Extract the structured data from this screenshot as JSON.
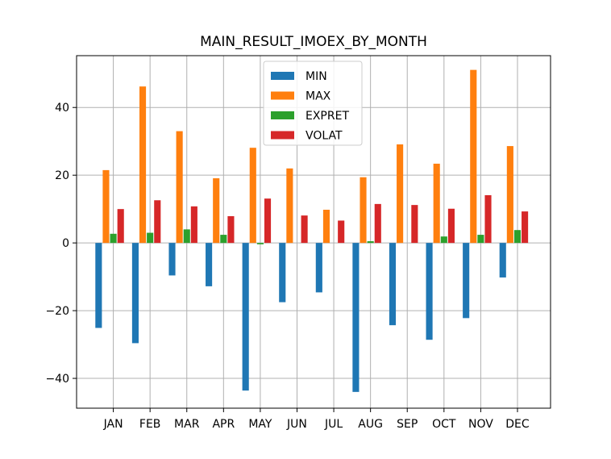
{
  "chart_data": {
    "type": "bar",
    "title": "MAIN_RESULT_IMOEX_BY_MONTH",
    "xlabel": "",
    "ylabel": "",
    "categories": [
      "JAN",
      "FEB",
      "MAR",
      "APR",
      "MAY",
      "JUN",
      "JUL",
      "AUG",
      "SEP",
      "OCT",
      "NOV",
      "DEC"
    ],
    "ylim": [
      -48.8,
      55.3
    ],
    "yticks": [
      -40,
      -20,
      0,
      20,
      40
    ],
    "grid": true,
    "legend_position": "upper-center",
    "series": [
      {
        "name": "MIN",
        "color": "#1f77b4",
        "values": [
          -25.1,
          -29.6,
          -9.6,
          -12.8,
          -43.6,
          -17.5,
          -14.6,
          -44.0,
          -24.3,
          -28.6,
          -22.2,
          -10.2
        ]
      },
      {
        "name": "MAX",
        "color": "#ff7f0e",
        "values": [
          21.5,
          46.2,
          33.0,
          19.1,
          28.1,
          22.0,
          9.8,
          19.4,
          29.1,
          23.4,
          51.1,
          28.6
        ]
      },
      {
        "name": "EXPRET",
        "color": "#2ca02c",
        "values": [
          2.7,
          3.0,
          4.0,
          2.4,
          -0.4,
          0.0,
          0.0,
          0.5,
          0.0,
          1.9,
          2.4,
          3.8
        ]
      },
      {
        "name": "VOLAT",
        "color": "#d62728",
        "values": [
          10.0,
          12.6,
          10.8,
          7.9,
          13.1,
          8.1,
          6.6,
          11.5,
          11.2,
          10.1,
          14.1,
          9.3
        ]
      }
    ]
  }
}
